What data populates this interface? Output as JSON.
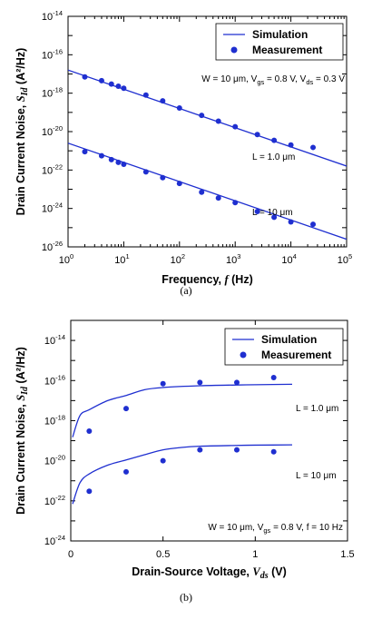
{
  "chart_data": [
    {
      "type": "line",
      "panel": "(a)",
      "xlabel": "Frequency,",
      "xlabel_symbol": "f",
      "xlabel_unit": "(Hz)",
      "ylabel": "Drain Current Noise,",
      "ylabel_symbol": "S",
      "ylabel_subscript": "Id",
      "ylabel_unit": "(A²/Hz)",
      "xscale": "log",
      "yscale": "log",
      "xlim": [
        1,
        100000
      ],
      "ylim": [
        1e-26,
        1e-14
      ],
      "xticks": [
        {
          "b": "10",
          "e": "0"
        },
        {
          "b": "10",
          "e": "1"
        },
        {
          "b": "10",
          "e": "2"
        },
        {
          "b": "10",
          "e": "3"
        },
        {
          "b": "10",
          "e": "4"
        },
        {
          "b": "10",
          "e": "5"
        }
      ],
      "yticks": [
        {
          "b": "10",
          "e": "-26"
        },
        {
          "b": "10",
          "e": "-24"
        },
        {
          "b": "10",
          "e": "-22"
        },
        {
          "b": "10",
          "e": "-20"
        },
        {
          "b": "10",
          "e": "-18"
        },
        {
          "b": "10",
          "e": "-16"
        },
        {
          "b": "10",
          "e": "-14"
        }
      ],
      "legend": {
        "position": "top-right",
        "entries": [
          "Simulation",
          "Measurement"
        ]
      },
      "annotations": [
        {
          "text": "W = 10 μm, V",
          "sub1": "gs",
          "mid": " = 0.8 V, V",
          "sub2": "ds",
          "end": " = 0.3 V"
        },
        {
          "text": "L = 1.0 μm"
        },
        {
          "text": "L = 10 μm"
        }
      ],
      "series": [
        {
          "label": "L = 1.0 μm",
          "simulation": {
            "x": [
              1,
              100000
            ],
            "y": [
              1.6e-17,
              1.6e-22
            ]
          },
          "measurement": {
            "x": [
              2,
              4,
              6,
              8,
              10,
              25,
              50,
              100,
              250,
              500,
              1000,
              2500,
              5000,
              10000,
              25000
            ],
            "y": [
              7e-18,
              4.5e-18,
              3e-18,
              2.3e-18,
              1.8e-18,
              8e-19,
              4e-19,
              1.7e-19,
              7e-20,
              3.5e-20,
              1.8e-20,
              7e-21,
              3.5e-21,
              2e-21,
              1.5e-21
            ]
          }
        },
        {
          "label": "L = 10 μm",
          "simulation": {
            "x": [
              1,
              100000
            ],
            "y": [
              2.5e-21,
              2.5e-26
            ]
          },
          "measurement": {
            "x": [
              2,
              4,
              6,
              8,
              10,
              25,
              50,
              100,
              250,
              500,
              1000,
              2500,
              5000,
              10000,
              25000
            ],
            "y": [
              9e-22,
              5.5e-22,
              3.5e-22,
              2.5e-22,
              2e-22,
              8e-23,
              4e-23,
              2e-23,
              7e-24,
              3.5e-24,
              2e-24,
              7e-25,
              3.5e-25,
              2e-25,
              1.5e-25
            ]
          }
        }
      ]
    },
    {
      "type": "line",
      "panel": "(b)",
      "xlabel": "Drain-Source Voltage,",
      "xlabel_symbol": "V",
      "xlabel_subscript": "ds",
      "xlabel_unit": "(V)",
      "ylabel": "Drain Current Noise,",
      "ylabel_symbol": "S",
      "ylabel_subscript": "Id",
      "ylabel_unit": "(A²/Hz)",
      "xscale": "linear",
      "yscale": "log",
      "xlim": [
        0,
        1.5
      ],
      "ylim": [
        1e-24,
        1e-13
      ],
      "xticks": [
        "0",
        "0.5",
        "1",
        "1.5"
      ],
      "yticks": [
        {
          "b": "10",
          "e": "-24"
        },
        {
          "b": "10",
          "e": "-22"
        },
        {
          "b": "10",
          "e": "-20"
        },
        {
          "b": "10",
          "e": "-18"
        },
        {
          "b": "10",
          "e": "-16"
        },
        {
          "b": "10",
          "e": "-14"
        }
      ],
      "legend": {
        "position": "top-right",
        "entries": [
          "Simulation",
          "Measurement"
        ]
      },
      "annotations": [
        {
          "text": "L = 1.0 μm"
        },
        {
          "text": "L = 10 μm"
        },
        {
          "text": "W = 10 μm, V",
          "sub1": "gs",
          "mid": " = 0.8 V, f = 10 Hz"
        }
      ],
      "series": [
        {
          "label": "L = 1.0 μm",
          "simulation": {
            "x": [
              0.01,
              0.05,
              0.1,
              0.2,
              0.3,
              0.4,
              0.5,
              0.7,
              0.9,
              1.0,
              1.2
            ],
            "y": [
              1.5e-19,
              1.8e-18,
              3.5e-18,
              1e-17,
              1.8e-17,
              3.5e-17,
              4.5e-17,
              5.5e-17,
              6e-17,
              6.2e-17,
              6.5e-17
            ]
          },
          "measurement": {
            "x": [
              0.1,
              0.3,
              0.5,
              0.7,
              0.9,
              1.1
            ],
            "y": [
              3e-19,
              4e-18,
              7e-17,
              8e-17,
              8e-17,
              1.4e-16
            ]
          }
        },
        {
          "label": "L = 10 μm",
          "simulation": {
            "x": [
              0.01,
              0.05,
              0.1,
              0.2,
              0.3,
              0.4,
              0.5,
              0.6,
              0.7,
              0.9,
              1.0,
              1.2
            ],
            "y": [
              7e-23,
              8e-22,
              2.2e-21,
              6e-21,
              1.1e-20,
              2e-20,
              3.5e-20,
              4.6e-20,
              5.3e-20,
              5.8e-20,
              6e-20,
              6.2e-20
            ]
          },
          "measurement": {
            "x": [
              0.1,
              0.3,
              0.5,
              0.7,
              0.9,
              1.1
            ],
            "y": [
              3e-22,
              2.8e-21,
              1e-20,
              3.5e-20,
              3.5e-20,
              2.8e-20
            ]
          }
        }
      ]
    }
  ]
}
